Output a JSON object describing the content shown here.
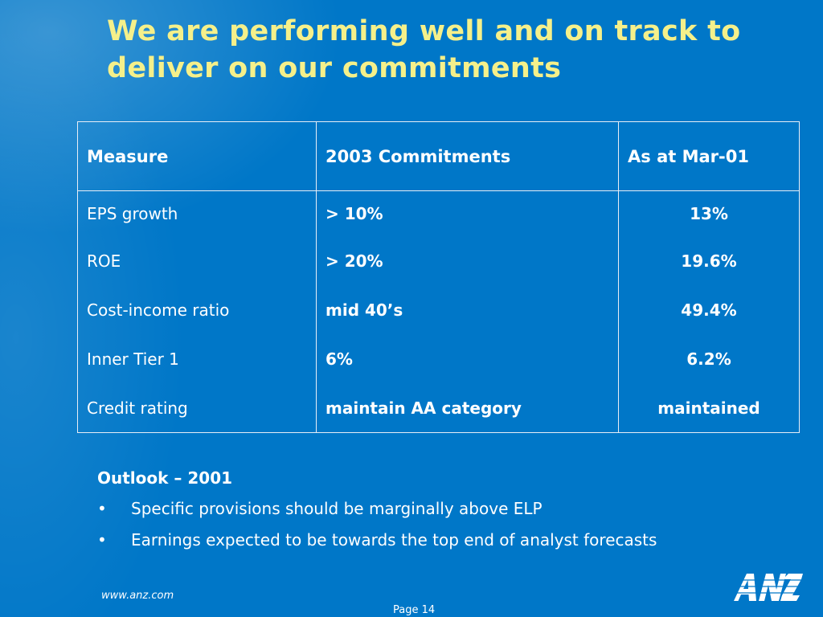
{
  "title": {
    "line1": "We are performing well and on track to",
    "line2": "deliver on our commitments"
  },
  "table": {
    "headers": [
      "Measure",
      "2003 Commitments",
      "As at Mar-01"
    ],
    "rows": [
      [
        "EPS growth",
        "> 10%",
        "13%"
      ],
      [
        "ROE",
        "> 20%",
        "19.6%"
      ],
      [
        "Cost-income ratio",
        "mid 40’s",
        "49.4%"
      ],
      [
        "Inner Tier 1",
        "6%",
        "6.2%"
      ],
      [
        "Credit rating",
        "maintain AA category",
        "maintained"
      ]
    ]
  },
  "outlook": {
    "heading": "Outlook – 2001",
    "bullet_glyph": "•",
    "items": [
      "Specific provisions should be marginally above ELP",
      "Earnings expected to be towards the top end of analyst forecasts"
    ]
  },
  "footer": {
    "url": "www.anz.com",
    "page": "Page 14",
    "logo_icon": "anz-logo"
  },
  "colors": {
    "background": "#0077c8",
    "title": "#f5f08a",
    "text": "#ffffff"
  }
}
